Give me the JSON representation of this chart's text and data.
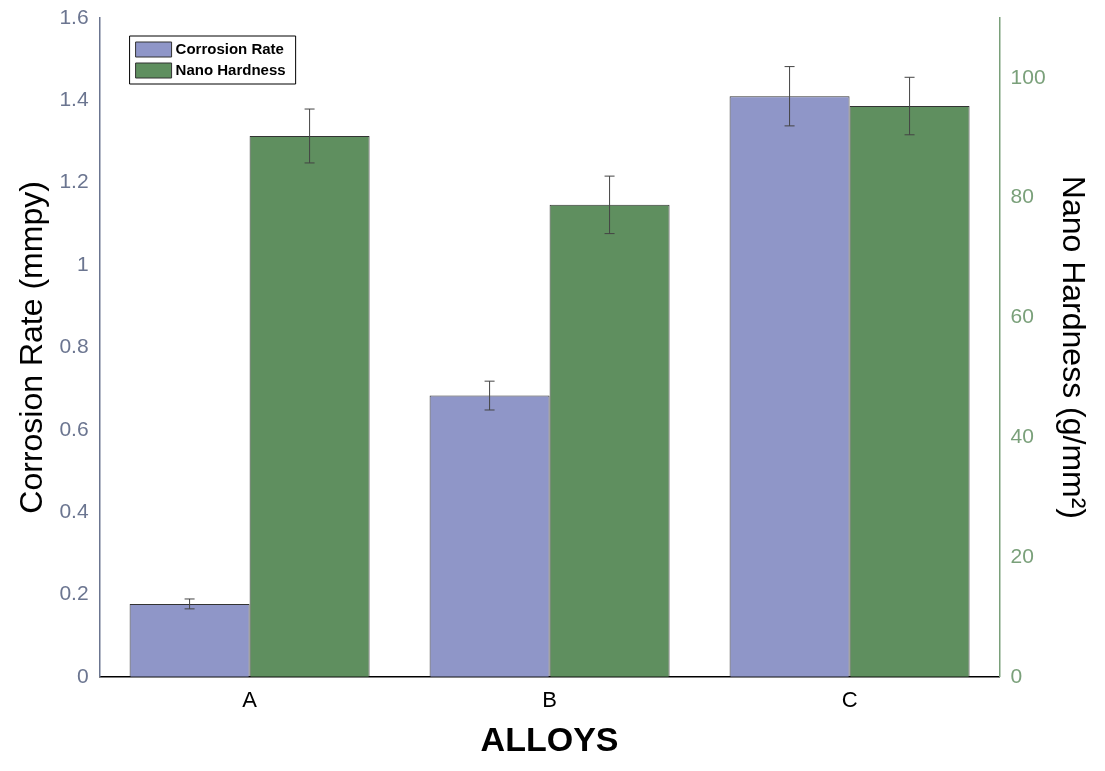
{
  "chart_data": {
    "type": "bar",
    "xlabel": "ALLOYS",
    "ylabel": "Corrosion Rate (mmpy)",
    "y2label": "Nano Hardness (g/mm²)",
    "categories": [
      "A",
      "B",
      "C"
    ],
    "series": [
      {
        "name": "Corrosion Rate",
        "color": "#8f96c8",
        "values": [
          0.177,
          0.683,
          1.41
        ],
        "errors": [
          0.012,
          0.035,
          0.072
        ]
      },
      {
        "name": "Nano Hardness",
        "color": "#5f8f5f",
        "axis": "y2",
        "values": [
          90.3,
          78.8,
          95.3
        ],
        "errors": [
          4.5,
          4.8,
          4.8
        ]
      }
    ],
    "ylim": [
      0,
      1.6
    ],
    "yticks": [
      0,
      0.2,
      0.4,
      0.6,
      0.8,
      1,
      1.2,
      1.4,
      1.6
    ],
    "y2lim": [
      0,
      110
    ],
    "y2ticks": [
      0,
      20,
      40,
      60,
      80,
      100
    ],
    "grid": false,
    "legend": "top left"
  }
}
